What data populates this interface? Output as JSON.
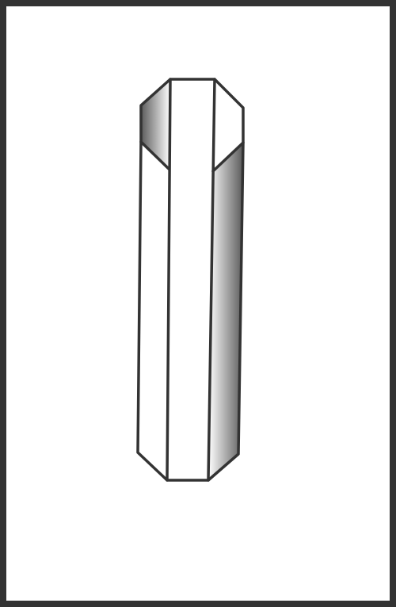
{
  "figure": {
    "subject": "",
    "colors": {
      "frame": "#333333",
      "background": "#ffffff",
      "outline": "#333333",
      "shade_dark": "#5a5a5a",
      "shade_light": "#ffffff"
    }
  }
}
